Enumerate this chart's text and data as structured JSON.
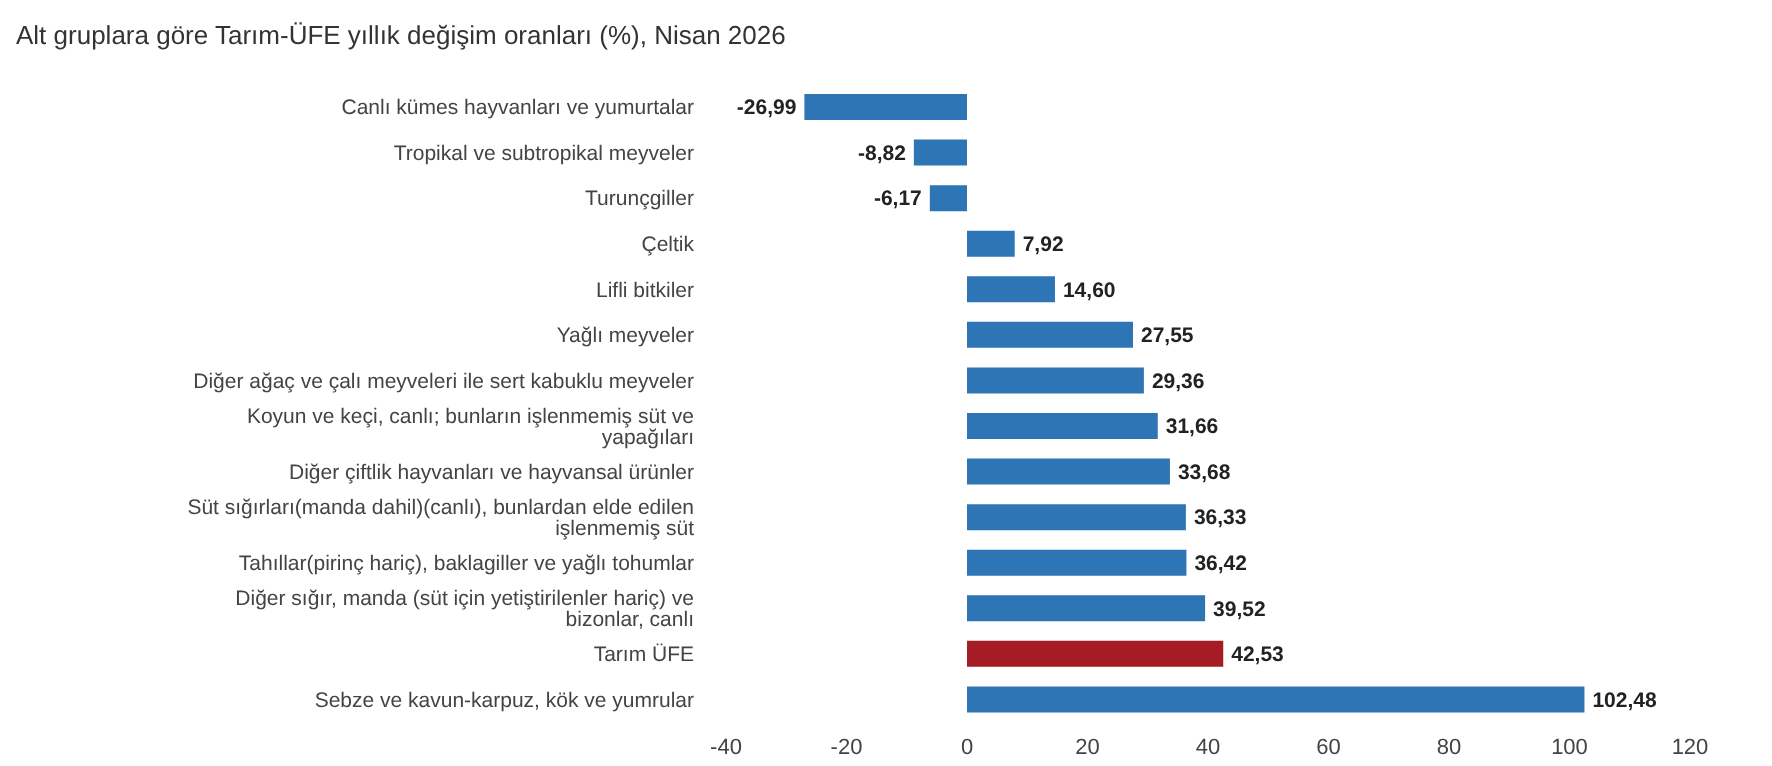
{
  "chart_data": {
    "type": "bar",
    "orientation": "horizontal",
    "title": "Alt gruplara göre Tarım-ÜFE yıllık değişim oranları (%), Nisan 2026",
    "categories": [
      "Canlı kümes hayvanları ve yumurtalar",
      "Tropikal ve subtropikal meyveler",
      "Turunçgiller",
      "Çeltik",
      "Lifli bitkiler",
      "Yağlı meyveler",
      "Diğer ağaç ve çalı meyveleri ile sert kabuklu meyveler",
      "Koyun ve keçi, canlı; bunların işlenmemiş süt ve yapağıları",
      "Diğer çiftlik hayvanları ve hayvansal ürünler",
      "Süt sığırları(manda dahil)(canlı), bunlardan elde edilen işlenmemiş süt",
      "Tahıllar(pirinç hariç), baklagiller ve yağlı tohumlar",
      "Diğer sığır, manda (süt için yetiştirilenler hariç) ve bizonlar, canlı",
      "Tarım ÜFE",
      "Sebze ve kavun-karpuz, kök ve yumrular"
    ],
    "values": [
      -26.99,
      -8.82,
      -6.17,
      7.92,
      14.6,
      27.55,
      29.36,
      31.66,
      33.68,
      36.33,
      36.42,
      39.52,
      42.53,
      102.48
    ],
    "value_labels": [
      "-26,99",
      "-8,82",
      "-6,17",
      "7,92",
      "14,60",
      "27,55",
      "29,36",
      "31,66",
      "33,68",
      "36,33",
      "36,42",
      "39,52",
      "42,53",
      "102,48"
    ],
    "colors": [
      "#2e75b6",
      "#2e75b6",
      "#2e75b6",
      "#2e75b6",
      "#2e75b6",
      "#2e75b6",
      "#2e75b6",
      "#2e75b6",
      "#2e75b6",
      "#2e75b6",
      "#2e75b6",
      "#2e75b6",
      "#a51c24",
      "#2e75b6"
    ],
    "xlim": [
      -40,
      120
    ],
    "xticks": [
      -40,
      -20,
      0,
      20,
      40,
      60,
      80,
      100,
      120
    ]
  }
}
